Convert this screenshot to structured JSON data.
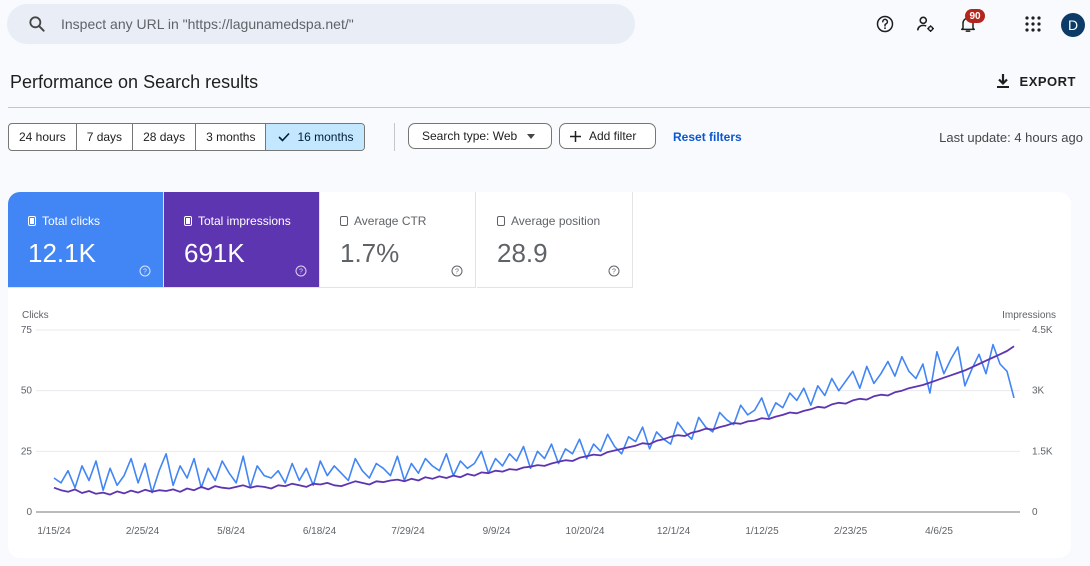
{
  "search": {
    "placeholder": "Inspect any URL in \"https://lagunamedspa.net/\""
  },
  "topbar": {
    "icons": [
      "help-icon",
      "manage-users-icon",
      "notifications-icon",
      "apps-grid-icon"
    ],
    "notification_count": "90",
    "avatar_letter": "D"
  },
  "page": {
    "title": "Performance on Search results",
    "export_label": "EXPORT"
  },
  "filters": {
    "date_ranges": [
      "24 hours",
      "7 days",
      "28 days",
      "3 months",
      "16 months"
    ],
    "selected_range": "16 months",
    "search_type": "Search type: Web",
    "add_filter": "Add filter",
    "reset": "Reset filters",
    "last_update": "Last update: 4 hours ago"
  },
  "metrics": {
    "clicks": {
      "label": "Total clicks",
      "value": "12.1K",
      "selected": true,
      "color": "#4285f4"
    },
    "impressions": {
      "label": "Total impressions",
      "value": "691K",
      "selected": true,
      "color": "#5e35b1"
    },
    "ctr": {
      "label": "Average CTR",
      "value": "1.7%",
      "selected": false
    },
    "position": {
      "label": "Average position",
      "value": "28.9",
      "selected": false
    }
  },
  "chart_data": {
    "type": "line",
    "xlabel": "",
    "x_ticks": [
      "1/15/24",
      "2/25/24",
      "5/8/24",
      "6/18/24",
      "7/29/24",
      "9/9/24",
      "10/20/24",
      "12/1/24",
      "1/12/25",
      "2/23/25",
      "4/6/25"
    ],
    "x_range": [
      "2024-01-15",
      "2025-05-26"
    ],
    "left_axis": {
      "label": "Clicks",
      "ticks": [
        "0",
        "25",
        "50",
        "75"
      ],
      "range": [
        0,
        75
      ]
    },
    "right_axis": {
      "label": "Impressions",
      "ticks": [
        "0",
        "1.5K",
        "3K",
        "4.5K"
      ],
      "range": [
        0,
        4500
      ]
    },
    "grid": true,
    "series": [
      {
        "name": "Clicks",
        "axis": "left",
        "color": "#4285f4",
        "values": [
          14,
          12,
          17,
          10,
          19,
          13,
          21,
          9,
          18,
          11,
          15,
          22,
          12,
          20,
          8,
          17,
          24,
          11,
          19,
          14,
          22,
          10,
          18,
          13,
          21,
          16,
          12,
          23,
          10,
          19,
          15,
          14,
          17,
          12,
          20,
          13,
          18,
          11,
          21,
          15,
          19,
          16,
          13,
          22,
          17,
          14,
          20,
          18,
          15,
          23,
          13,
          20,
          16,
          22,
          19,
          17,
          24,
          15,
          21,
          18,
          20,
          25,
          16,
          22,
          19,
          24,
          21,
          27,
          18,
          25,
          22,
          28,
          20,
          26,
          24,
          30,
          22,
          28,
          25,
          32,
          27,
          24,
          31,
          29,
          35,
          26,
          33,
          30,
          28,
          37,
          33,
          30,
          39,
          35,
          33,
          41,
          38,
          36,
          44,
          40,
          42,
          47,
          39,
          45,
          43,
          49,
          46,
          51,
          44,
          52,
          48,
          55,
          50,
          54,
          58,
          51,
          60,
          53,
          57,
          62,
          56,
          64,
          58,
          55,
          61,
          49,
          66,
          57,
          63,
          68,
          52,
          59,
          65,
          57,
          69,
          61,
          58,
          47
        ]
      },
      {
        "name": "Impressions",
        "axis": "right",
        "color": "#5e35b1",
        "values": [
          600,
          540,
          500,
          560,
          470,
          520,
          450,
          480,
          430,
          510,
          460,
          530,
          480,
          550,
          500,
          540,
          520,
          560,
          500,
          580,
          540,
          620,
          560,
          640,
          600,
          580,
          620,
          660,
          600,
          640,
          620,
          580,
          660,
          640,
          700,
          660,
          620,
          700,
          680,
          720,
          660,
          640,
          700,
          760,
          720,
          680,
          760,
          740,
          780,
          800,
          760,
          820,
          780,
          860,
          820,
          880,
          840,
          900,
          860,
          940,
          900,
          980,
          960,
          1020,
          1000,
          1060,
          1040,
          1100,
          1120,
          1160,
          1140,
          1200,
          1240,
          1280,
          1260,
          1340,
          1380,
          1420,
          1400,
          1480,
          1520,
          1560,
          1600,
          1640,
          1700,
          1680,
          1760,
          1800,
          1860,
          1900,
          1880,
          1960,
          2000,
          2060,
          2040,
          2100,
          2140,
          2200,
          2180,
          2240,
          2260,
          2320,
          2300,
          2360,
          2400,
          2460,
          2440,
          2500,
          2540,
          2600,
          2580,
          2660,
          2700,
          2680,
          2760,
          2800,
          2780,
          2860,
          2900,
          2880,
          2960,
          3000,
          3060,
          3100,
          3140,
          3200,
          3260,
          3320,
          3380,
          3440,
          3500,
          3580,
          3660,
          3740,
          3820,
          3900,
          3980,
          4100
        ]
      }
    ]
  }
}
